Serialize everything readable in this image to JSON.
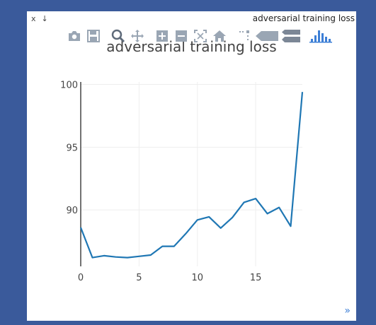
{
  "window": {
    "close_label": "x",
    "pin_label": "↓",
    "title": "adversarial training loss"
  },
  "modebar": {
    "buttons": [
      {
        "name": "camera-icon"
      },
      {
        "name": "save-icon"
      },
      {
        "name": "zoom-icon"
      },
      {
        "name": "pan-icon"
      },
      {
        "name": "zoom-in-icon"
      },
      {
        "name": "zoom-out-icon"
      },
      {
        "name": "autoscale-icon"
      },
      {
        "name": "home-icon"
      },
      {
        "name": "spikelines-icon"
      },
      {
        "name": "hover-closest-icon"
      },
      {
        "name": "hover-compare-icon"
      },
      {
        "name": "plotly-logo-icon"
      }
    ],
    "icon_color": "#9aa6b4",
    "logo_color": "#3d7fd6"
  },
  "expand_label": "»",
  "colors": {
    "line": "#1f77b4",
    "grid": "#eeeeee",
    "axis": "#444444"
  },
  "chart_data": {
    "type": "line",
    "title": "adversarial training loss",
    "xlabel": "",
    "ylabel": "",
    "xlim": [
      0,
      19
    ],
    "ylim": [
      85.5,
      100.2
    ],
    "xticks": [
      0,
      5,
      10,
      15
    ],
    "yticks": [
      90,
      95,
      100
    ],
    "grid": true,
    "series": [
      {
        "x": [
          0,
          1,
          2,
          3,
          4,
          5,
          6,
          7,
          8,
          9,
          10,
          11,
          12,
          13,
          14,
          15,
          16,
          17,
          18,
          19
        ],
        "y": [
          88.6,
          86.2,
          86.35,
          86.25,
          86.2,
          86.3,
          86.4,
          87.1,
          87.1,
          88.1,
          89.2,
          89.45,
          88.55,
          89.4,
          90.6,
          90.9,
          89.7,
          90.2,
          88.7,
          99.4
        ]
      }
    ]
  }
}
